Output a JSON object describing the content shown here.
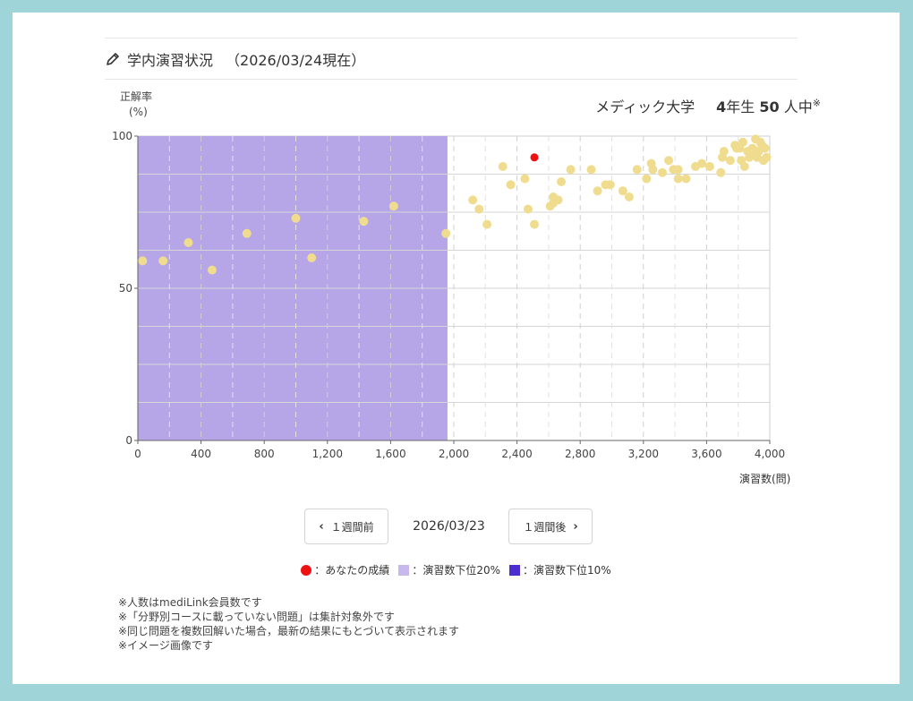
{
  "header": {
    "title": "学内演習状況",
    "date_label": "（2026/03/24現在）"
  },
  "y_axis_label": "正解率",
  "y_axis_unit": "(%)",
  "school": {
    "name": "メディック大学",
    "grade_num": "4",
    "grade_suffix": "年生",
    "count": "50",
    "count_suffix": "人中",
    "mark": "※"
  },
  "x_axis_unit": "演習数(問)",
  "nav": {
    "prev_label": "１週間前",
    "current_date": "2026/03/23",
    "next_label": "１週間後"
  },
  "legend": {
    "you": "：あなたの成績",
    "bottom20": "：演習数下位20%",
    "bottom10": "：演習数下位10%"
  },
  "colors": {
    "you": "#ee1111",
    "others": "#f0dc8e",
    "bottom20_light": "#c9b8ee",
    "bottom20_region": "#b6a6e8",
    "bottom10": "#4a2ed0"
  },
  "notes": [
    "※人数はmediLink会員数です",
    "※「分野別コースに載っていない問題」は集計対象外です",
    "※同じ問題を複数回解いた場合，最新の結果にもとづいて表示されます",
    "※イメージ画像です"
  ],
  "chart_data": {
    "type": "scatter",
    "xlabel": "演習数(問)",
    "ylabel": "正解率 (%)",
    "xlim": [
      0,
      4000
    ],
    "ylim": [
      0,
      100
    ],
    "x_ticks": [
      0,
      400,
      800,
      1200,
      1600,
      2000,
      2400,
      2800,
      3200,
      3600,
      4000
    ],
    "x_tick_labels": [
      "0",
      "400",
      "800",
      "1,200",
      "1,600",
      "2,000",
      "2,400",
      "2,800",
      "3,200",
      "3,600",
      "4,000"
    ],
    "y_ticks": [
      0,
      50,
      100
    ],
    "y_tick_labels": [
      "0",
      "50",
      "100"
    ],
    "shaded_region": {
      "x_from": 0,
      "x_to": 1960,
      "meaning": "演習数下位20%"
    },
    "you": {
      "x": 2510,
      "y": 93
    },
    "points": [
      [
        30,
        59
      ],
      [
        160,
        59
      ],
      [
        320,
        65
      ],
      [
        470,
        56
      ],
      [
        690,
        68
      ],
      [
        1000,
        73
      ],
      [
        1100,
        60
      ],
      [
        1430,
        72
      ],
      [
        1620,
        77
      ],
      [
        1950,
        68
      ],
      [
        2120,
        79
      ],
      [
        2160,
        76
      ],
      [
        2210,
        71
      ],
      [
        2310,
        90
      ],
      [
        2360,
        84
      ],
      [
        2450,
        86
      ],
      [
        2470,
        76
      ],
      [
        2510,
        71
      ],
      [
        2610,
        77
      ],
      [
        2630,
        80
      ],
      [
        2630,
        78
      ],
      [
        2660,
        79
      ],
      [
        2680,
        85
      ],
      [
        2740,
        89
      ],
      [
        2870,
        89
      ],
      [
        2910,
        82
      ],
      [
        2960,
        84
      ],
      [
        2990,
        84
      ],
      [
        3070,
        82
      ],
      [
        3110,
        80
      ],
      [
        3160,
        89
      ],
      [
        3220,
        86
      ],
      [
        3250,
        91
      ],
      [
        3260,
        89
      ],
      [
        3320,
        88
      ],
      [
        3360,
        92
      ],
      [
        3390,
        89
      ],
      [
        3420,
        89
      ],
      [
        3420,
        86
      ],
      [
        3470,
        86
      ],
      [
        3530,
        90
      ],
      [
        3570,
        91
      ],
      [
        3620,
        90
      ],
      [
        3690,
        88
      ],
      [
        3700,
        93
      ],
      [
        3710,
        95
      ],
      [
        3750,
        92
      ],
      [
        3780,
        97
      ],
      [
        3790,
        96
      ],
      [
        3810,
        96
      ],
      [
        3820,
        92
      ],
      [
        3830,
        98
      ],
      [
        3840,
        90
      ],
      [
        3860,
        95
      ],
      [
        3870,
        93
      ],
      [
        3890,
        96
      ],
      [
        3900,
        94
      ],
      [
        3910,
        99
      ],
      [
        3920,
        93
      ],
      [
        3930,
        95
      ],
      [
        3940,
        98
      ],
      [
        3950,
        97
      ],
      [
        3960,
        92
      ],
      [
        3970,
        96
      ],
      [
        3980,
        93
      ]
    ]
  }
}
